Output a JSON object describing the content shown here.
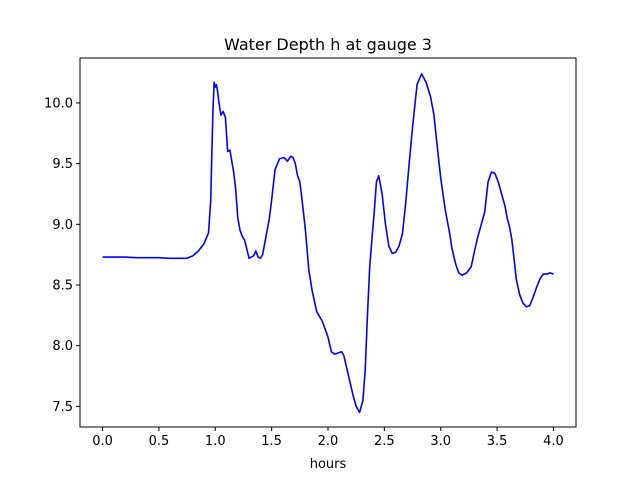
{
  "chart_data": {
    "type": "line",
    "title": "Water Depth h at gauge 3",
    "xlabel": "hours",
    "ylabel": "",
    "xlim": [
      -0.2,
      4.2
    ],
    "ylim": [
      7.33,
      10.37
    ],
    "xticks": [
      0.0,
      0.5,
      1.0,
      1.5,
      2.0,
      2.5,
      3.0,
      3.5,
      4.0
    ],
    "xtick_labels": [
      "0.0",
      "0.5",
      "1.0",
      "1.5",
      "2.0",
      "2.5",
      "3.0",
      "3.5",
      "4.0"
    ],
    "yticks": [
      7.5,
      8.0,
      8.5,
      9.0,
      9.5,
      10.0
    ],
    "ytick_labels": [
      "7.5",
      "8.0",
      "8.5",
      "9.0",
      "9.5",
      "10.0"
    ],
    "grid": false,
    "series": [
      {
        "color": "#0000ff",
        "x": [
          0.0,
          0.1,
          0.2,
          0.3,
          0.4,
          0.5,
          0.6,
          0.7,
          0.75,
          0.8,
          0.85,
          0.9,
          0.94,
          0.96,
          0.97,
          0.98,
          0.99,
          1.0,
          1.01,
          1.02,
          1.03,
          1.05,
          1.07,
          1.09,
          1.11,
          1.13,
          1.15,
          1.16,
          1.18,
          1.2,
          1.22,
          1.24,
          1.26,
          1.3,
          1.34,
          1.36,
          1.38,
          1.4,
          1.42,
          1.44,
          1.46,
          1.48,
          1.5,
          1.53,
          1.57,
          1.61,
          1.64,
          1.67,
          1.69,
          1.71,
          1.73,
          1.75,
          1.77,
          1.8,
          1.83,
          1.86,
          1.9,
          1.95,
          2.0,
          2.03,
          2.06,
          2.09,
          2.12,
          2.14,
          2.16,
          2.19,
          2.22,
          2.25,
          2.28,
          2.31,
          2.33,
          2.35,
          2.37,
          2.39,
          2.41,
          2.43,
          2.45,
          2.48,
          2.51,
          2.54,
          2.57,
          2.6,
          2.63,
          2.66,
          2.69,
          2.72,
          2.75,
          2.79,
          2.83,
          2.87,
          2.91,
          2.94,
          2.96,
          2.98,
          3.0,
          3.02,
          3.04,
          3.06,
          3.08,
          3.1,
          3.13,
          3.16,
          3.19,
          3.23,
          3.27,
          3.3,
          3.33,
          3.36,
          3.39,
          3.42,
          3.45,
          3.48,
          3.51,
          3.54,
          3.57,
          3.59,
          3.61,
          3.63,
          3.65,
          3.67,
          3.7,
          3.73,
          3.76,
          3.79,
          3.82,
          3.85,
          3.88,
          3.91,
          3.94,
          3.97,
          4.0
        ],
        "y": [
          8.73,
          8.73,
          8.73,
          8.725,
          8.725,
          8.725,
          8.72,
          8.72,
          8.72,
          8.74,
          8.78,
          8.84,
          8.93,
          9.2,
          9.6,
          9.95,
          10.17,
          10.13,
          10.15,
          10.1,
          10.02,
          9.9,
          9.93,
          9.88,
          9.6,
          9.61,
          9.5,
          9.45,
          9.3,
          9.05,
          8.95,
          8.9,
          8.87,
          8.72,
          8.74,
          8.78,
          8.73,
          8.72,
          8.75,
          8.85,
          8.95,
          9.05,
          9.2,
          9.45,
          9.54,
          9.55,
          9.52,
          9.56,
          9.55,
          9.5,
          9.4,
          9.35,
          9.2,
          8.95,
          8.62,
          8.45,
          8.28,
          8.2,
          8.07,
          7.95,
          7.93,
          7.94,
          7.95,
          7.92,
          7.84,
          7.72,
          7.6,
          7.5,
          7.45,
          7.55,
          7.8,
          8.25,
          8.65,
          8.88,
          9.1,
          9.35,
          9.4,
          9.25,
          9.0,
          8.82,
          8.76,
          8.77,
          8.82,
          8.92,
          9.18,
          9.5,
          9.8,
          10.15,
          10.24,
          10.17,
          10.05,
          9.9,
          9.72,
          9.55,
          9.38,
          9.25,
          9.12,
          9.02,
          8.92,
          8.8,
          8.68,
          8.6,
          8.58,
          8.6,
          8.65,
          8.78,
          8.9,
          9.0,
          9.1,
          9.35,
          9.43,
          9.42,
          9.35,
          9.25,
          9.15,
          9.05,
          8.98,
          8.88,
          8.72,
          8.55,
          8.42,
          8.35,
          8.32,
          8.33,
          8.4,
          8.48,
          8.55,
          8.59,
          8.59,
          8.6,
          8.59
        ]
      }
    ]
  }
}
